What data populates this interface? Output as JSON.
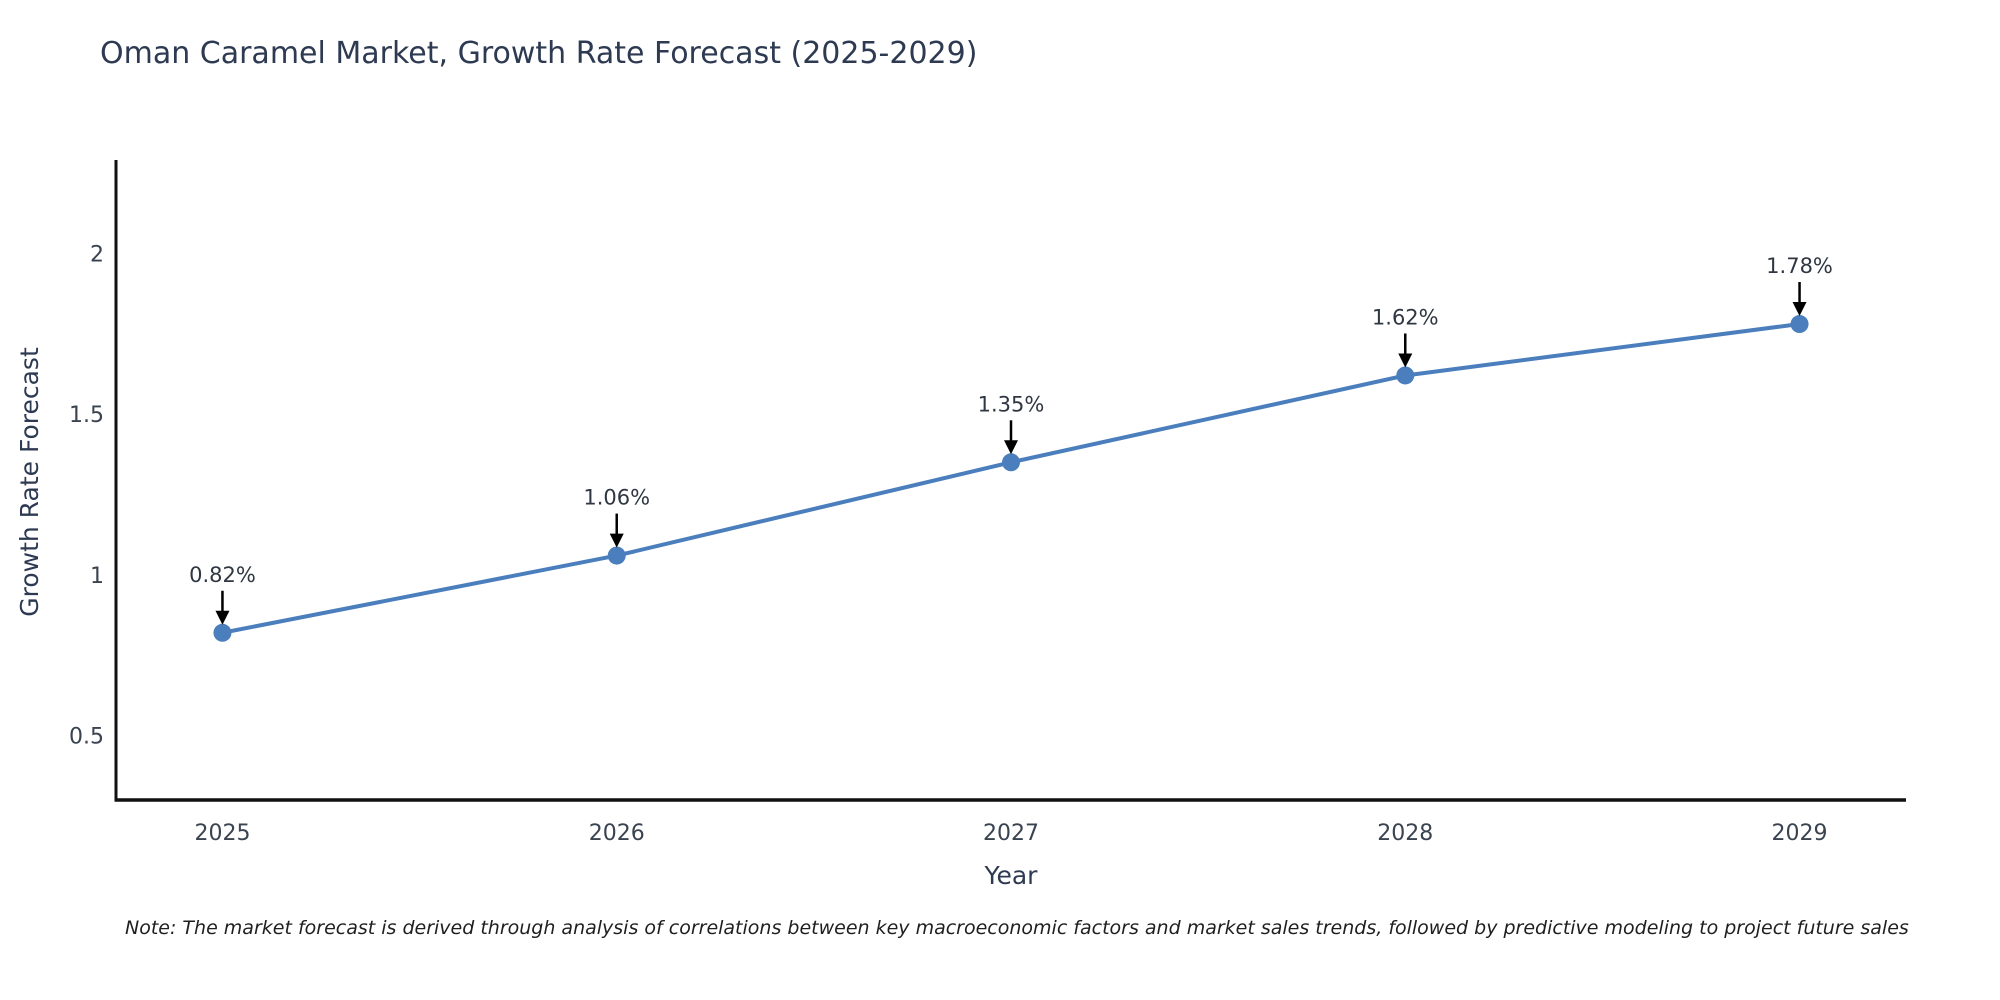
{
  "header": {
    "title": "Oman Caramel Market, Growth Rate Forecast (2025-2029)"
  },
  "footer": {
    "note": "Note: The market forecast is derived through analysis of correlations between key macroeconomic factors and market sales trends, followed by predictive modeling to project future sales"
  },
  "chart_data": {
    "type": "line",
    "title": "Oman Caramel Market, Growth Rate Forecast (2025-2029)",
    "xlabel": "Year",
    "ylabel": "Growth Rate Forecast",
    "x": [
      2025,
      2026,
      2027,
      2028,
      2029
    ],
    "series": [
      {
        "name": "Growth Rate Forecast",
        "values": [
          0.82,
          1.06,
          1.35,
          1.62,
          1.78
        ],
        "point_labels": [
          "0.82%",
          "1.06%",
          "1.35%",
          "1.62%",
          "1.78%"
        ]
      }
    ],
    "xtick_labels": [
      "2025",
      "2026",
      "2027",
      "2028",
      "2029"
    ],
    "ytick_values": [
      0.5,
      1,
      1.5,
      2
    ],
    "ytick_labels": [
      "0.5",
      "1",
      "1.5",
      "2"
    ],
    "ylim": [
      0.3,
      2.29
    ],
    "xlim": [
      2024.73,
      2029.27
    ],
    "grid": false,
    "legend": "none",
    "annotations_arrows": true,
    "colors": {
      "line": "#4a7ebc",
      "marker": "#4a7ebc",
      "axis": "#111111",
      "arrow": "#000000",
      "title_text": "#2d3a52",
      "tick_text": "#3a4350",
      "annotation_text": "#2f3742"
    }
  }
}
